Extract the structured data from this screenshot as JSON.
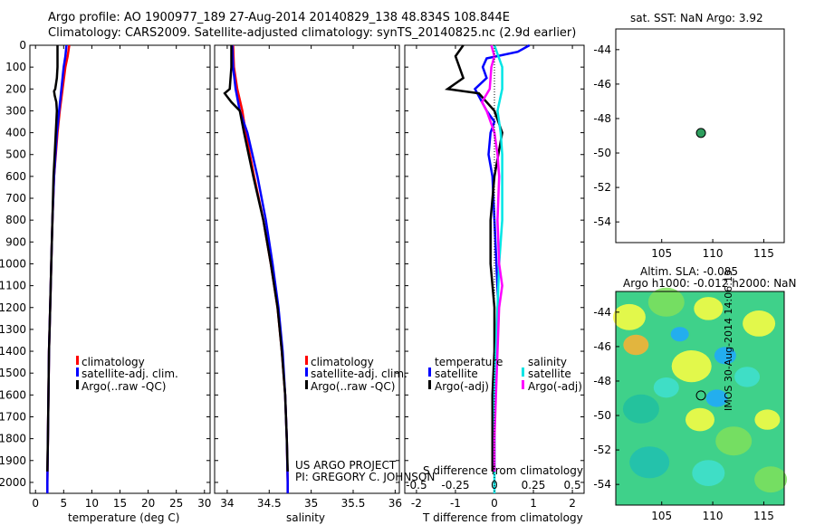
{
  "header": {
    "title_line1": "Argo profile: AO 1900977_189 27-Aug-2014 20140829_138 48.834S 108.844E",
    "title_line2": "Climatology: CARS2009. Satellite-adjusted climatology: synTS_20140825.nc (2.9d earlier)"
  },
  "colors": {
    "climatology": "#ff0000",
    "satellite": "#0000ff",
    "argo": "#000000",
    "t_satellite": "#00e5e5",
    "s_argo": "#ff00ff",
    "float_marker": "#2e9e5e"
  },
  "credits": {
    "project": "US ARGO PROJECT",
    "pi": "PI: GREGORY C. JOHNSON",
    "stamp": "IMOS 30-Aug-2014 14:06:13"
  },
  "sst_map": {
    "title": "sat. SST: NaN Argo: 3.92",
    "xticks": [
      "105",
      "110",
      "115"
    ],
    "yticks": [
      "-44",
      "-46",
      "-48",
      "-50",
      "-52",
      "-54"
    ],
    "float": {
      "lon": 108.844,
      "lat": -48.834
    }
  },
  "sla_map": {
    "title1": "Altim. SLA: -0.085",
    "title2": "Argo h1000: -0.012 h2000: NaN",
    "xticks": [
      "105",
      "110",
      "115"
    ],
    "yticks": [
      "-44",
      "-46",
      "-48",
      "-50",
      "-52",
      "-54"
    ]
  },
  "chart_data": [
    {
      "type": "line",
      "panel": "temperature",
      "xlabel": "temperature (deg C)",
      "xlim": [
        -1,
        31
      ],
      "ylim": [
        0,
        2050
      ],
      "xticks": [
        "0",
        "5",
        "10",
        "15",
        "20",
        "25",
        "30"
      ],
      "yticks": [
        "0",
        "100",
        "200",
        "300",
        "400",
        "500",
        "600",
        "700",
        "800",
        "900",
        "1000",
        "1100",
        "1200",
        "1300",
        "1400",
        "1500",
        "1600",
        "1700",
        "1800",
        "1900",
        "2000"
      ],
      "legend": [
        "climatology",
        "satellite-adj. clim.",
        "Argo(..raw -QC)"
      ],
      "series": [
        {
          "name": "climatology",
          "depth": [
            0,
            50,
            100,
            200,
            300,
            400,
            600,
            800,
            1000,
            1200,
            1400,
            1600,
            1800,
            2000,
            2050
          ],
          "values": [
            6.0,
            5.7,
            5.3,
            4.8,
            4.3,
            3.9,
            3.3,
            3.0,
            2.8,
            2.6,
            2.4,
            2.3,
            2.2,
            2.1,
            2.1
          ]
        },
        {
          "name": "satellite-adj. clim.",
          "depth": [
            0,
            50,
            100,
            200,
            300,
            400,
            600,
            800,
            1000,
            1200,
            1400,
            1600,
            1800,
            2000,
            2050
          ],
          "values": [
            5.5,
            5.3,
            5.0,
            4.6,
            4.2,
            3.8,
            3.3,
            3.0,
            2.8,
            2.6,
            2.4,
            2.3,
            2.2,
            2.1,
            2.1
          ]
        },
        {
          "name": "Argo(..raw -QC)",
          "depth": [
            0,
            50,
            100,
            150,
            200,
            210,
            230,
            260,
            300,
            400,
            500,
            600,
            800,
            1000,
            1200,
            1400,
            1600,
            1800,
            1950
          ],
          "values": [
            3.9,
            3.9,
            3.9,
            3.8,
            3.5,
            3.3,
            3.4,
            3.7,
            3.8,
            3.6,
            3.4,
            3.2,
            3.0,
            2.8,
            2.6,
            2.4,
            2.3,
            2.2,
            2.1
          ]
        }
      ]
    },
    {
      "type": "line",
      "panel": "salinity",
      "xlabel": "salinity",
      "xlim": [
        33.85,
        36.05
      ],
      "ylim": [
        0,
        2050
      ],
      "xticks": [
        "34",
        "34.5",
        "35",
        "35.5",
        "36"
      ],
      "legend": [
        "climatology",
        "satellite-adj. clim.",
        "Argo(..raw -QC)"
      ],
      "series": [
        {
          "name": "climatology",
          "depth": [
            0,
            100,
            200,
            300,
            400,
            600,
            800,
            1000,
            1200,
            1400,
            1600,
            1800,
            2000,
            2050
          ],
          "values": [
            34.07,
            34.08,
            34.12,
            34.18,
            34.22,
            34.32,
            34.43,
            34.52,
            34.6,
            34.65,
            34.69,
            34.71,
            34.72,
            34.72
          ]
        },
        {
          "name": "satellite-adj. clim.",
          "depth": [
            0,
            100,
            200,
            300,
            400,
            600,
            800,
            1000,
            1200,
            1400,
            1600,
            1800,
            2000,
            2050
          ],
          "values": [
            34.06,
            34.07,
            34.1,
            34.15,
            34.24,
            34.36,
            34.46,
            34.54,
            34.61,
            34.66,
            34.69,
            34.71,
            34.72,
            34.72
          ]
        },
        {
          "name": "Argo(..raw -QC)",
          "depth": [
            0,
            100,
            200,
            220,
            260,
            300,
            400,
            600,
            800,
            1000,
            1200,
            1400,
            1600,
            1800,
            1950
          ],
          "values": [
            34.05,
            34.05,
            34.03,
            33.97,
            34.05,
            34.15,
            34.2,
            34.31,
            34.43,
            34.52,
            34.6,
            34.65,
            34.69,
            34.71,
            34.72
          ]
        }
      ]
    },
    {
      "type": "line",
      "panel": "difference",
      "xlabel": "T difference from climatology",
      "xlabel_top": "S difference from climatology",
      "xlim": [
        -2.3,
        2.3
      ],
      "ylim": [
        0,
        2050
      ],
      "xticks": [
        "-2",
        "-1",
        "0",
        "1",
        "2"
      ],
      "xticks_s": [
        "-0.5",
        "-0.25",
        "0",
        "0.25",
        "0.5"
      ],
      "legend_t_title": "temperature",
      "legend_s_title": "salinity",
      "legend": [
        "satellite",
        "Argo(-adj)",
        "satellite",
        "Argo(-adj)"
      ],
      "series": [
        {
          "name": "T satellite",
          "depth": [
            0,
            30,
            60,
            100,
            150,
            200,
            300,
            350,
            400,
            500,
            600,
            800,
            1000,
            1200,
            1400,
            1600,
            1800,
            1950
          ],
          "values": [
            0.9,
            0.6,
            -0.2,
            -0.3,
            -0.2,
            -0.5,
            -0.2,
            0.0,
            -0.1,
            -0.15,
            -0.05,
            0.0,
            0.05,
            0.1,
            0.05,
            0.0,
            0.0,
            0.0
          ]
        },
        {
          "name": "T Argo(-adj)",
          "depth": [
            0,
            50,
            100,
            150,
            200,
            220,
            260,
            300,
            400,
            500,
            600,
            800,
            1000,
            1200,
            1400,
            1600,
            1800,
            1950
          ],
          "values": [
            -0.8,
            -1.0,
            -0.9,
            -0.8,
            -1.2,
            -0.4,
            -0.2,
            0.0,
            0.2,
            0.1,
            0.0,
            -0.1,
            -0.1,
            0.0,
            0.0,
            -0.05,
            -0.05,
            -0.05
          ]
        },
        {
          "name": "S satellite",
          "depth": [
            0,
            100,
            200,
            300,
            400,
            500,
            600,
            800,
            1000,
            1200,
            1400,
            1600,
            1800,
            2000,
            2050
          ],
          "values": [
            0.0,
            0.05,
            0.05,
            0.02,
            0.04,
            0.05,
            0.05,
            0.05,
            0.03,
            0.02,
            0.01,
            0.0,
            0.0,
            0.0,
            0.0
          ]
        },
        {
          "name": "S Argo(-adj)",
          "depth": [
            0,
            50,
            100,
            200,
            260,
            300,
            400,
            500,
            600,
            800,
            1000,
            1100,
            1200,
            1400,
            1600,
            1800,
            1950
          ],
          "values": [
            -0.02,
            0.0,
            -0.02,
            -0.03,
            -0.08,
            -0.05,
            0.0,
            0.02,
            0.03,
            0.02,
            0.03,
            0.05,
            0.03,
            0.02,
            0.01,
            0.0,
            0.0
          ]
        }
      ]
    }
  ]
}
